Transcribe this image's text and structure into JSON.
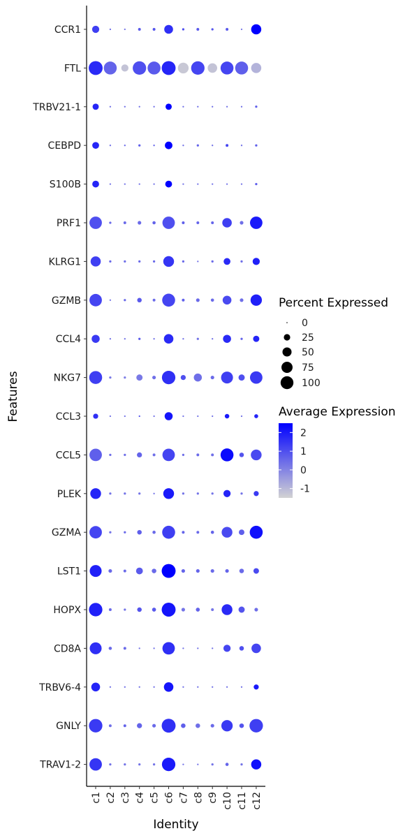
{
  "chart_data": {
    "type": "dotplot",
    "xlabel": "Identity",
    "ylabel": "Features",
    "categories": [
      "c1",
      "c2",
      "c3",
      "c4",
      "c5",
      "c6",
      "c7",
      "c8",
      "c9",
      "c10",
      "c11",
      "c12"
    ],
    "features": [
      "CCR1",
      "FTL",
      "TRBV21-1",
      "CEBPD",
      "S100B",
      "PRF1",
      "KLRG1",
      "GZMB",
      "CCL4",
      "NKG7",
      "CCL3",
      "CCL5",
      "PLEK",
      "GZMA",
      "LST1",
      "HOPX",
      "CD8A",
      "TRBV6-4",
      "GNLY",
      "TRAV1-2"
    ],
    "pct_expressed": [
      [
        20,
        1,
        1,
        3,
        3,
        30,
        2,
        3,
        2,
        3,
        1,
        40
      ],
      [
        75,
        65,
        20,
        70,
        65,
        75,
        45,
        70,
        35,
        65,
        65,
        40
      ],
      [
        15,
        1,
        1,
        1,
        1,
        15,
        1,
        1,
        1,
        1,
        1,
        2
      ],
      [
        18,
        1,
        1,
        2,
        1,
        22,
        1,
        2,
        1,
        3,
        1,
        2
      ],
      [
        18,
        1,
        1,
        1,
        1,
        18,
        1,
        1,
        1,
        1,
        1,
        2
      ],
      [
        60,
        2,
        3,
        5,
        4,
        60,
        3,
        3,
        3,
        35,
        5,
        60
      ],
      [
        40,
        2,
        2,
        2,
        2,
        45,
        2,
        1,
        2,
        18,
        2,
        20
      ],
      [
        60,
        1,
        2,
        8,
        3,
        65,
        3,
        5,
        4,
        30,
        5,
        50
      ],
      [
        25,
        1,
        1,
        2,
        1,
        35,
        1,
        2,
        1,
        25,
        2,
        15
      ],
      [
        65,
        2,
        2,
        15,
        5,
        70,
        10,
        25,
        5,
        55,
        15,
        60
      ],
      [
        10,
        1,
        1,
        1,
        1,
        25,
        1,
        1,
        1,
        8,
        1,
        6
      ],
      [
        60,
        2,
        2,
        10,
        3,
        60,
        2,
        3,
        3,
        65,
        8,
        45
      ],
      [
        45,
        2,
        2,
        2,
        1,
        45,
        2,
        2,
        2,
        20,
        2,
        10
      ],
      [
        60,
        2,
        2,
        8,
        4,
        65,
        3,
        3,
        4,
        45,
        12,
        65
      ],
      [
        55,
        5,
        3,
        18,
        8,
        75,
        5,
        5,
        5,
        5,
        8,
        12
      ],
      [
        70,
        3,
        2,
        8,
        6,
        75,
        5,
        6,
        3,
        45,
        15,
        5
      ],
      [
        55,
        4,
        3,
        1,
        1,
        60,
        1,
        1,
        1,
        20,
        8,
        35
      ],
      [
        30,
        1,
        1,
        1,
        1,
        35,
        1,
        1,
        1,
        1,
        1,
        10
      ],
      [
        70,
        3,
        3,
        10,
        5,
        75,
        8,
        8,
        5,
        50,
        8,
        70
      ],
      [
        60,
        2,
        2,
        2,
        2,
        70,
        1,
        1,
        2,
        4,
        2,
        40
      ]
    ],
    "avg_expression": [
      [
        1.3,
        0.5,
        0.3,
        0.8,
        0.9,
        1.6,
        1.0,
        0.8,
        0.9,
        0.8,
        0.2,
        2.6
      ],
      [
        1.7,
        0.6,
        -1.2,
        1.0,
        0.8,
        1.8,
        -1.3,
        1.2,
        -1.2,
        1.2,
        0.7,
        -0.9
      ],
      [
        1.8,
        0.3,
        0.3,
        0.3,
        0.3,
        2.6,
        0.3,
        0.3,
        0.3,
        0.3,
        0.3,
        0.7
      ],
      [
        1.8,
        0.3,
        0.5,
        0.7,
        0.6,
        2.5,
        0.3,
        0.6,
        0.3,
        1.2,
        0.3,
        0.7
      ],
      [
        1.8,
        0.3,
        0.3,
        0.3,
        0.3,
        2.7,
        0.3,
        0.3,
        0.3,
        0.3,
        0.3,
        0.7
      ],
      [
        1.0,
        0.5,
        0.5,
        0.5,
        0.6,
        1.0,
        0.7,
        0.6,
        0.6,
        1.3,
        0.4,
        2.0
      ],
      [
        1.3,
        0.5,
        0.4,
        0.5,
        0.5,
        1.5,
        0.5,
        0.3,
        0.5,
        1.7,
        0.4,
        1.9
      ],
      [
        1.2,
        0.2,
        0.5,
        0.8,
        0.5,
        1.2,
        0.7,
        0.5,
        0.5,
        1.1,
        0.4,
        1.9
      ],
      [
        1.4,
        0.3,
        0.3,
        0.8,
        0.3,
        1.7,
        0.3,
        0.3,
        0.3,
        1.7,
        0.6,
        1.8
      ],
      [
        1.3,
        0.2,
        0.1,
        0.2,
        0.4,
        1.6,
        1.0,
        0.4,
        0.5,
        1.3,
        1.0,
        1.4
      ],
      [
        1.6,
        0.3,
        0.3,
        0.9,
        0.3,
        2.1,
        0.3,
        0.3,
        0.3,
        2.0,
        0.3,
        1.8
      ],
      [
        0.7,
        0.4,
        0.4,
        0.6,
        0.4,
        1.2,
        0.4,
        0.5,
        0.4,
        2.3,
        0.9,
        1.1
      ],
      [
        1.8,
        0.3,
        0.3,
        0.3,
        0.3,
        2.0,
        0.3,
        0.3,
        0.3,
        1.8,
        0.3,
        1.4
      ],
      [
        1.2,
        0.3,
        0.5,
        0.7,
        0.5,
        1.3,
        0.6,
        0.5,
        0.6,
        1.1,
        0.7,
        2.2
      ],
      [
        1.9,
        0.5,
        0.5,
        0.8,
        0.5,
        2.8,
        0.6,
        0.6,
        0.5,
        0.6,
        0.5,
        1.1
      ],
      [
        1.9,
        0.5,
        0.3,
        0.9,
        0.8,
        2.1,
        0.3,
        0.6,
        0.3,
        1.7,
        0.9,
        0.4
      ],
      [
        1.6,
        0.5,
        0.5,
        0.3,
        0.3,
        1.6,
        0.3,
        0.3,
        0.3,
        1.2,
        1.0,
        1.2
      ],
      [
        1.8,
        0.3,
        0.3,
        0.3,
        0.3,
        2.1,
        0.3,
        0.3,
        0.3,
        0.3,
        0.3,
        2.0
      ],
      [
        1.4,
        0.4,
        0.6,
        0.6,
        0.5,
        1.6,
        0.7,
        0.4,
        0.5,
        1.4,
        0.9,
        1.3
      ],
      [
        1.5,
        0.3,
        0.3,
        0.3,
        0.3,
        2.0,
        0.3,
        0.3,
        0.3,
        0.6,
        0.3,
        2.2
      ]
    ],
    "size_legend": {
      "title": "Percent Expressed",
      "breaks": [
        0,
        25,
        50,
        75,
        100
      ],
      "labels": [
        "0",
        "25",
        "50",
        "75",
        "100"
      ]
    },
    "color_legend": {
      "title": "Average Expression",
      "range": [
        -1.5,
        2.5
      ],
      "breaks": [
        2,
        1,
        0,
        -1
      ],
      "labels": [
        "2",
        "1",
        "0",
        "-1"
      ],
      "low_color": "#d3d3d3",
      "high_color": "#0000ff"
    },
    "legend_position": "right",
    "grid": false
  }
}
